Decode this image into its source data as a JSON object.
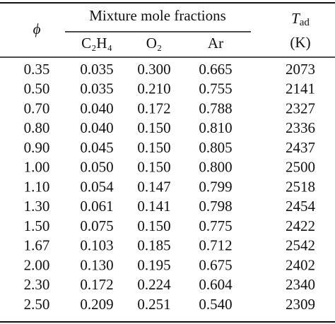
{
  "table": {
    "header": {
      "phi": "ϕ",
      "group": "Mixture mole fractions",
      "columns": [
        "C₂H₄",
        "O₂",
        "Ar"
      ],
      "tad_symbol": "T",
      "tad_subscript": "ad",
      "tad_unit": "(K)"
    },
    "rows": [
      [
        "0.35",
        "0.035",
        "0.300",
        "0.665",
        "2073"
      ],
      [
        "0.50",
        "0.035",
        "0.210",
        "0.755",
        "2141"
      ],
      [
        "0.70",
        "0.040",
        "0.172",
        "0.788",
        "2327"
      ],
      [
        "0.80",
        "0.040",
        "0.150",
        "0.810",
        "2336"
      ],
      [
        "0.90",
        "0.045",
        "0.150",
        "0.805",
        "2437"
      ],
      [
        "1.00",
        "0.050",
        "0.150",
        "0.800",
        "2500"
      ],
      [
        "1.10",
        "0.054",
        "0.147",
        "0.799",
        "2518"
      ],
      [
        "1.30",
        "0.061",
        "0.141",
        "0.798",
        "2454"
      ],
      [
        "1.50",
        "0.075",
        "0.150",
        "0.775",
        "2422"
      ],
      [
        "1.67",
        "0.103",
        "0.185",
        "0.712",
        "2542"
      ],
      [
        "2.00",
        "0.130",
        "0.195",
        "0.675",
        "2402"
      ],
      [
        "2.30",
        "0.172",
        "0.224",
        "0.604",
        "2340"
      ],
      [
        "2.50",
        "0.209",
        "0.251",
        "0.540",
        "2309"
      ]
    ]
  }
}
